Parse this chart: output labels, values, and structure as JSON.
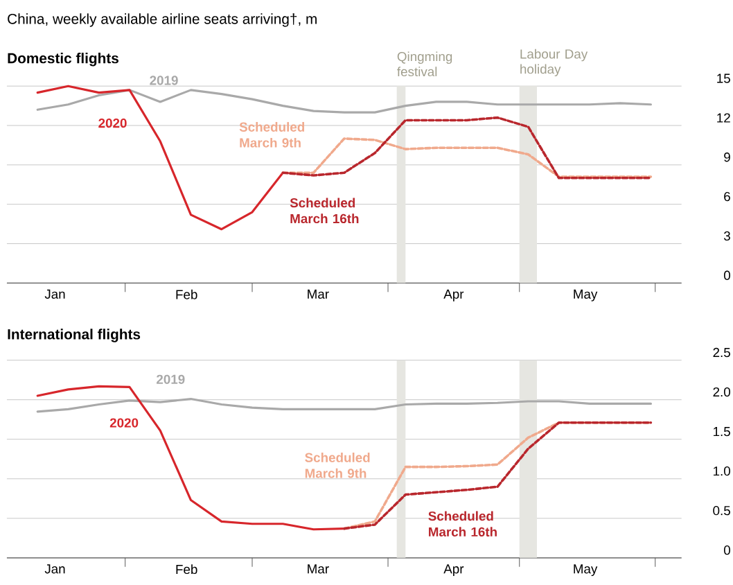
{
  "chart_data": [
    {
      "type": "line",
      "title": "China, weekly available airline seats arriving†, m",
      "subtitle": "Domestic flights",
      "x": [
        "2020-01-12",
        "2020-01-19",
        "2020-01-26",
        "2020-02-02",
        "2020-02-09",
        "2020-02-16",
        "2020-02-23",
        "2020-03-01",
        "2020-03-08",
        "2020-03-15",
        "2020-03-22",
        "2020-03-29",
        "2020-04-05",
        "2020-04-12",
        "2020-04-19",
        "2020-04-26",
        "2020-05-03",
        "2020-05-10",
        "2020-05-17",
        "2020-05-24",
        "2020-05-31"
      ],
      "xlim": [
        "2020-01-05",
        "2020-06-07"
      ],
      "xticks": [
        {
          "value": "2020-01-16",
          "label": "Jan"
        },
        {
          "value": "2020-02-01",
          "label": null
        },
        {
          "value": "2020-02-15",
          "label": "Feb"
        },
        {
          "value": "2020-03-01",
          "label": null
        },
        {
          "value": "2020-03-16",
          "label": "Mar"
        },
        {
          "value": "2020-04-01",
          "label": null
        },
        {
          "value": "2020-04-16",
          "label": "Apr"
        },
        {
          "value": "2020-05-01",
          "label": null
        },
        {
          "value": "2020-05-16",
          "label": "May"
        },
        {
          "value": "2020-06-01",
          "label": null
        }
      ],
      "ylim": [
        0,
        15
      ],
      "yticks": [
        0,
        3,
        6,
        9,
        12,
        15
      ],
      "grid": "y",
      "bands": [
        {
          "axis": "x",
          "from": "2020-04-03",
          "to": "2020-04-05",
          "label": "Qingming festival",
          "color": "#e6e6e1"
        },
        {
          "axis": "x",
          "from": "2020-05-01",
          "to": "2020-05-05",
          "label": "Labour Day holiday",
          "color": "#e6e6e1"
        }
      ],
      "series": [
        {
          "name": "2019",
          "color": "#a9a9a9",
          "line_style": "solid",
          "values": [
            13.2,
            13.6,
            14.3,
            14.7,
            13.8,
            14.7,
            14.4,
            14.0,
            13.5,
            13.1,
            13.0,
            13.0,
            13.5,
            13.8,
            13.8,
            13.6,
            13.6,
            13.6,
            13.6,
            13.7,
            13.6
          ]
        },
        {
          "name": "2020",
          "color": "#d7262b",
          "line_style": "solid",
          "values": [
            14.5,
            15.0,
            14.5,
            14.7,
            10.8,
            5.2,
            4.1,
            5.4,
            8.4,
            null,
            null,
            null,
            null,
            null,
            null,
            null,
            null,
            null,
            null,
            null,
            null
          ]
        },
        {
          "name": "Scheduled March 9th",
          "color": "#f0a98c",
          "line_style": "dashed",
          "values": [
            null,
            null,
            null,
            null,
            null,
            null,
            null,
            null,
            8.4,
            8.4,
            11.0,
            10.9,
            10.2,
            10.3,
            10.3,
            10.3,
            9.8,
            8.1,
            8.1,
            8.1,
            8.1
          ]
        },
        {
          "name": "Scheduled March 16th",
          "color": "#b9272d",
          "line_style": "dashed",
          "values": [
            null,
            null,
            null,
            null,
            null,
            null,
            null,
            null,
            8.4,
            8.2,
            8.4,
            9.9,
            12.4,
            12.4,
            12.4,
            12.6,
            11.9,
            8.0,
            8.0,
            8.0,
            8.0
          ]
        }
      ]
    },
    {
      "type": "line",
      "title": "International flights",
      "x": [
        "2020-01-12",
        "2020-01-19",
        "2020-01-26",
        "2020-02-02",
        "2020-02-09",
        "2020-02-16",
        "2020-02-23",
        "2020-03-01",
        "2020-03-08",
        "2020-03-15",
        "2020-03-22",
        "2020-03-29",
        "2020-04-05",
        "2020-04-12",
        "2020-04-19",
        "2020-04-26",
        "2020-05-03",
        "2020-05-10",
        "2020-05-17",
        "2020-05-24",
        "2020-05-31"
      ],
      "xlim": [
        "2020-01-05",
        "2020-06-07"
      ],
      "xticks": [
        {
          "value": "2020-01-16",
          "label": "Jan"
        },
        {
          "value": "2020-02-01",
          "label": null
        },
        {
          "value": "2020-02-15",
          "label": "Feb"
        },
        {
          "value": "2020-03-01",
          "label": null
        },
        {
          "value": "2020-03-16",
          "label": "Mar"
        },
        {
          "value": "2020-04-01",
          "label": null
        },
        {
          "value": "2020-04-16",
          "label": "Apr"
        },
        {
          "value": "2020-05-01",
          "label": null
        },
        {
          "value": "2020-05-16",
          "label": "May"
        },
        {
          "value": "2020-06-01",
          "label": null
        }
      ],
      "ylim": [
        0,
        2.5
      ],
      "yticks": [
        0,
        0.5,
        {
          "value": 1,
          "label": "1.0"
        },
        1.5,
        {
          "value": 2,
          "label": "2.0"
        },
        2.5
      ],
      "grid": "y",
      "bands": [
        {
          "axis": "x",
          "from": "2020-04-03",
          "to": "2020-04-05",
          "color": "#e6e6e1"
        },
        {
          "axis": "x",
          "from": "2020-05-01",
          "to": "2020-05-05",
          "color": "#e6e6e1"
        }
      ],
      "series": [
        {
          "name": "2019",
          "color": "#a9a9a9",
          "line_style": "solid",
          "values": [
            1.85,
            1.88,
            1.94,
            1.99,
            1.97,
            2.01,
            1.94,
            1.9,
            1.88,
            1.88,
            1.88,
            1.88,
            1.94,
            1.95,
            1.95,
            1.96,
            1.98,
            1.98,
            1.95,
            1.95,
            1.95
          ]
        },
        {
          "name": "2020",
          "color": "#d7262b",
          "line_style": "solid",
          "values": [
            2.05,
            2.13,
            2.17,
            2.16,
            1.61,
            0.73,
            0.46,
            0.43,
            0.43,
            0.36,
            0.37,
            null,
            null,
            null,
            null,
            null,
            null,
            null,
            null,
            null,
            null
          ]
        },
        {
          "name": "Scheduled March 9th",
          "color": "#f0a98c",
          "line_style": "dashed",
          "values": [
            null,
            null,
            null,
            null,
            null,
            null,
            null,
            null,
            null,
            null,
            0.37,
            0.46,
            1.15,
            1.15,
            1.16,
            1.18,
            1.52,
            1.71,
            1.71,
            1.71,
            1.71
          ]
        },
        {
          "name": "Scheduled March 16th",
          "color": "#b9272d",
          "line_style": "dashed",
          "values": [
            null,
            null,
            null,
            null,
            null,
            null,
            null,
            null,
            null,
            null,
            0.37,
            0.42,
            0.8,
            0.83,
            0.86,
            0.9,
            1.38,
            1.71,
            1.71,
            1.71,
            1.71
          ]
        }
      ]
    }
  ]
}
